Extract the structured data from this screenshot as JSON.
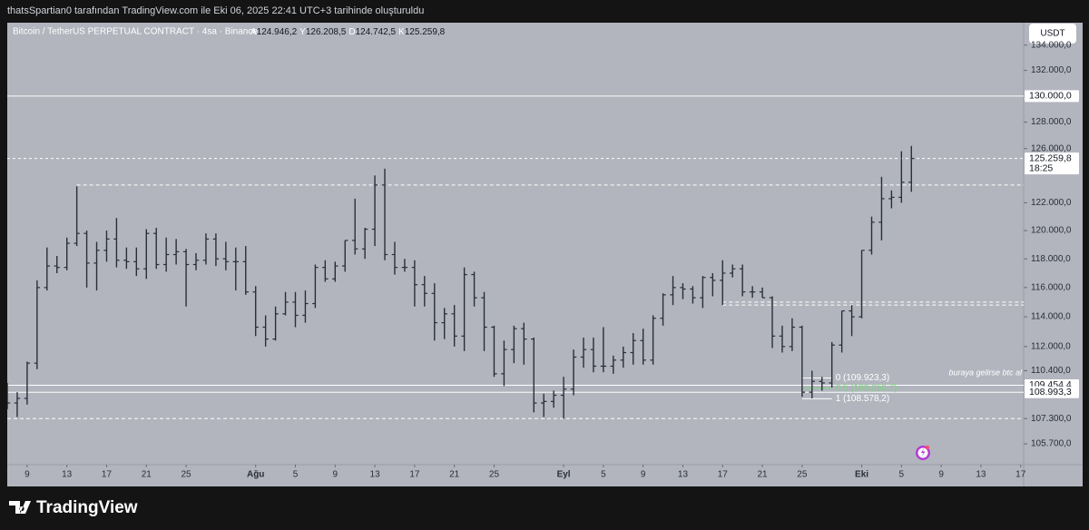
{
  "header": {
    "credit": "thatsSpartian0 tarafından TradingView.com ile Eki 06, 2025 22:41 UTC+3 tarihinde oluşturuldu"
  },
  "currency_button": "USDT",
  "footer": {
    "brand": "TradingView"
  },
  "chart_data": {
    "type": "ohlc",
    "title": "Bitcoin / TetherUS PERPETUAL CONTRACT · 4sa · Binance",
    "ohlc_readout": [
      {
        "key": "A",
        "value": "124.946,2"
      },
      {
        "key": "Y",
        "value": "126.208,5"
      },
      {
        "key": "D",
        "value": "124.742,5"
      },
      {
        "key": "K",
        "value": "125.259,8"
      }
    ],
    "log_scale": true,
    "color": "#2a2e39",
    "xlim": [
      -2,
      100.3
    ],
    "ylim": [
      104400,
      135800
    ],
    "xticks": [
      {
        "value": 0,
        "label": "9"
      },
      {
        "value": 4,
        "label": "13"
      },
      {
        "value": 8,
        "label": "17"
      },
      {
        "value": 12,
        "label": "21"
      },
      {
        "value": 16,
        "label": "25"
      },
      {
        "value": 23,
        "label": "Ağu"
      },
      {
        "value": 27,
        "label": "5"
      },
      {
        "value": 31,
        "label": "9"
      },
      {
        "value": 35,
        "label": "13"
      },
      {
        "value": 39,
        "label": "17"
      },
      {
        "value": 43,
        "label": "21"
      },
      {
        "value": 47,
        "label": "25"
      },
      {
        "value": 54,
        "label": "Eyl"
      },
      {
        "value": 58,
        "label": "5"
      },
      {
        "value": 62,
        "label": "9"
      },
      {
        "value": 66,
        "label": "13"
      },
      {
        "value": 70,
        "label": "17"
      },
      {
        "value": 74,
        "label": "21"
      },
      {
        "value": 78,
        "label": "25"
      },
      {
        "value": 84,
        "label": "Eki"
      },
      {
        "value": 88,
        "label": "5"
      },
      {
        "value": 92,
        "label": "9"
      },
      {
        "value": 96,
        "label": "13"
      },
      {
        "value": 100,
        "label": "17"
      }
    ],
    "yticks": [
      {
        "value": 134000,
        "label": "134.000,0"
      },
      {
        "value": 132000,
        "label": "132.000,0"
      },
      {
        "value": 128000,
        "label": "128.000,0"
      },
      {
        "value": 126000,
        "label": "126.000,0"
      },
      {
        "value": 122000,
        "label": "122.000,0"
      },
      {
        "value": 120000,
        "label": "120.000,0"
      },
      {
        "value": 118000,
        "label": "118.000,0"
      },
      {
        "value": 116000,
        "label": "116.000,0"
      },
      {
        "value": 114000,
        "label": "114.000,0"
      },
      {
        "value": 112000,
        "label": "112.000,0"
      },
      {
        "value": 110400,
        "label": "110.400,0"
      },
      {
        "value": 107300,
        "label": "107.300,0"
      },
      {
        "value": 105700,
        "label": "105.700,0"
      }
    ],
    "x": [
      -2,
      -1,
      0,
      1,
      2,
      3,
      4,
      5,
      6,
      7,
      8,
      9,
      10,
      11,
      12,
      13,
      14,
      15,
      16,
      17,
      18,
      19,
      20,
      21,
      22,
      23,
      24,
      25,
      26,
      27,
      28,
      29,
      30,
      31,
      32,
      33,
      34,
      35,
      36,
      37,
      38,
      39,
      40,
      41,
      42,
      43,
      44,
      45,
      46,
      47,
      48,
      49,
      50,
      51,
      52,
      53,
      54,
      55,
      56,
      57,
      58,
      59,
      60,
      61,
      62,
      63,
      64,
      65,
      66,
      67,
      68,
      69,
      70,
      71,
      72,
      73,
      74,
      75,
      76,
      77,
      78,
      79,
      80,
      81,
      82,
      83,
      84,
      85,
      86,
      87,
      88,
      89
    ],
    "open": [
      108900,
      108300,
      108600,
      110900,
      116000,
      117500,
      117400,
      119100,
      119800,
      117700,
      118600,
      119400,
      117900,
      117800,
      117300,
      119800,
      117600,
      118300,
      118500,
      117600,
      117900,
      119400,
      118000,
      117800,
      117800,
      115700,
      113300,
      112500,
      114200,
      115000,
      114100,
      114900,
      117400,
      116600,
      117500,
      119300,
      118700,
      120100,
      123300,
      118300,
      117400,
      117400,
      116200,
      115600,
      113600,
      114200,
      112700,
      116900,
      115300,
      113300,
      110200,
      111800,
      113200,
      112500,
      108300,
      108400,
      108800,
      109200,
      111300,
      111800,
      110700,
      110700,
      111100,
      111600,
      112400,
      111100,
      113900,
      115500,
      116000,
      115900,
      115300,
      116700,
      116500,
      117000,
      117300,
      115700,
      115700,
      115300,
      112700,
      112000,
      113300,
      109000,
      109700,
      109600,
      112100,
      114400,
      114000,
      118600,
      120600,
      122300,
      122400,
      123500
    ],
    "high": [
      109600,
      109000,
      111000,
      116500,
      118800,
      118200,
      119500,
      123200,
      120000,
      119200,
      120000,
      120900,
      118800,
      118800,
      120100,
      120200,
      119500,
      119400,
      118700,
      118400,
      119800,
      119800,
      119200,
      118800,
      118900,
      116100,
      114100,
      114700,
      115700,
      115700,
      115800,
      117600,
      117900,
      117800,
      119300,
      122300,
      120200,
      124000,
      124500,
      119200,
      118000,
      117900,
      116800,
      116300,
      114600,
      114800,
      117400,
      117100,
      115700,
      113400,
      112400,
      113400,
      113600,
      112600,
      108900,
      109100,
      110000,
      111800,
      112600,
      112600,
      113300,
      111400,
      112000,
      112900,
      113200,
      114100,
      115600,
      116800,
      116300,
      116100,
      116800,
      117000,
      117900,
      117600,
      117600,
      116100,
      116000,
      115400,
      113400,
      113900,
      113400,
      110400,
      110000,
      112300,
      114400,
      114800,
      118600,
      121000,
      123900,
      122900,
      125800,
      126200
    ],
    "low": [
      107900,
      107400,
      108200,
      110500,
      115800,
      117000,
      117200,
      118900,
      116000,
      115800,
      117800,
      117400,
      117300,
      116800,
      116600,
      117300,
      117100,
      117600,
      114700,
      117200,
      117600,
      117500,
      117200,
      115800,
      115500,
      112700,
      112000,
      112400,
      114100,
      113300,
      113600,
      114600,
      116400,
      116400,
      117100,
      118300,
      118000,
      118900,
      117900,
      116900,
      117100,
      114700,
      114700,
      112400,
      112500,
      112000,
      111700,
      114700,
      111700,
      110000,
      109400,
      110900,
      110800,
      107700,
      107400,
      108000,
      107300,
      108800,
      110600,
      110300,
      110300,
      110200,
      110600,
      110800,
      110800,
      110800,
      113400,
      114800,
      115200,
      114900,
      114600,
      115400,
      114800,
      116700,
      115400,
      115300,
      115300,
      111900,
      111600,
      111700,
      108700,
      108600,
      109100,
      109300,
      111600,
      112700,
      113900,
      118300,
      119300,
      121600,
      122000,
      122800
    ],
    "close": [
      108300,
      108600,
      110900,
      116000,
      117500,
      117400,
      119100,
      119800,
      117700,
      118600,
      119400,
      117900,
      117800,
      117300,
      119800,
      117600,
      118300,
      118500,
      117600,
      117900,
      119400,
      118000,
      117800,
      117800,
      115700,
      113300,
      112500,
      114200,
      115000,
      114100,
      114900,
      117400,
      116600,
      117500,
      119300,
      118700,
      120100,
      123300,
      118300,
      117400,
      117400,
      116200,
      115600,
      113600,
      114200,
      112700,
      116900,
      115300,
      113300,
      110200,
      111800,
      113200,
      112500,
      108300,
      108400,
      108800,
      109200,
      111300,
      111800,
      110700,
      110700,
      111100,
      111600,
      112400,
      111100,
      113900,
      115500,
      116000,
      115900,
      115300,
      116700,
      116500,
      117000,
      117300,
      115700,
      115700,
      115300,
      112700,
      112000,
      113300,
      109000,
      109700,
      109600,
      112100,
      114400,
      114000,
      118600,
      120600,
      122300,
      122400,
      123500,
      125260
    ],
    "price_lines": [
      {
        "value": 130000,
        "label": "130.000,0",
        "style": "solid"
      },
      {
        "value": 125259.8,
        "label": "125.259,8",
        "sublabel": "18:25",
        "style": "dashed"
      },
      {
        "value": 109454.4,
        "label": "109.454,4",
        "style": "solid"
      },
      {
        "value": 108993.3,
        "label": "108.993,3",
        "style": "solid"
      }
    ],
    "levels": [
      {
        "value": 123300,
        "start": 5,
        "style": "dashed"
      },
      {
        "value": 107300,
        "start": -2,
        "style": "dashed"
      },
      {
        "value": 115000,
        "start": 70,
        "style": "dashed"
      },
      {
        "value": 114800,
        "start": 70,
        "style": "dashed"
      }
    ],
    "fib": {
      "start": 78,
      "end": 81,
      "levels": [
        {
          "value": 109923.3,
          "label": "0 (109.923,3)",
          "color": "#ffffff"
        },
        {
          "value": 109250.7,
          "label": "0.5 (109.250,7)",
          "color": "#7bd67f"
        },
        {
          "value": 108578.2,
          "label": "1 (108.578,2)",
          "color": "#ffffff"
        }
      ]
    },
    "annotation": {
      "text": "buraya gelirse btc al",
      "value": 109700
    }
  }
}
